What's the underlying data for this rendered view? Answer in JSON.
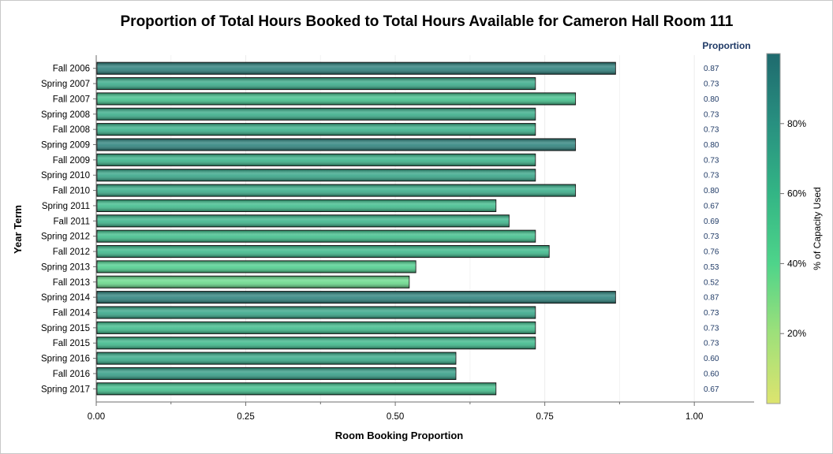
{
  "chart_data": {
    "type": "bar",
    "orientation": "horizontal",
    "title": "Proportion of Total Hours Booked to Total Hours Available for Cameron Hall Room 111",
    "xlabel": "Room Booking Proportion",
    "ylabel": "Year Term",
    "xlim": [
      0,
      1.1
    ],
    "x_ticks": [
      "0.00",
      "0.25",
      "0.50",
      "0.75",
      "1.00"
    ],
    "x_tick_values": [
      0,
      0.25,
      0.5,
      0.75,
      1.0
    ],
    "grid": true,
    "value_column_header": "Proportion",
    "categories": [
      "Fall 2006",
      "Spring 2007",
      "Fall 2007",
      "Spring 2008",
      "Fall 2008",
      "Spring 2009",
      "Fall 2009",
      "Spring 2010",
      "Fall 2010",
      "Spring 2011",
      "Fall 2011",
      "Spring 2012",
      "Fall 2012",
      "Spring 2013",
      "Fall 2013",
      "Spring 2014",
      "Fall 2014",
      "Spring 2015",
      "Fall 2015",
      "Spring 2016",
      "Fall 2016",
      "Spring 2017"
    ],
    "values": [
      0.867,
      0.733,
      0.8,
      0.733,
      0.733,
      0.8,
      0.733,
      0.733,
      0.8,
      0.667,
      0.689,
      0.733,
      0.756,
      0.533,
      0.522,
      0.867,
      0.733,
      0.733,
      0.733,
      0.6,
      0.6,
      0.667
    ],
    "value_labels": [
      "0.87",
      "0.73",
      "0.80",
      "0.73",
      "0.73",
      "0.80",
      "0.73",
      "0.73",
      "0.80",
      "0.67",
      "0.69",
      "0.73",
      "0.76",
      "0.53",
      "0.52",
      "0.87",
      "0.73",
      "0.73",
      "0.73",
      "0.60",
      "0.60",
      "0.67"
    ],
    "color_values": [
      0.92,
      0.68,
      0.55,
      0.67,
      0.65,
      0.9,
      0.63,
      0.71,
      0.66,
      0.58,
      0.62,
      0.57,
      0.6,
      0.45,
      0.35,
      0.9,
      0.7,
      0.58,
      0.6,
      0.68,
      0.75,
      0.56
    ],
    "colorbar": {
      "label": "% of Capacity Used",
      "ticks": [
        "20%",
        "40%",
        "60%",
        "80%"
      ],
      "tick_values": [
        0.2,
        0.4,
        0.6,
        0.8
      ],
      "range": [
        0.0,
        1.0
      ],
      "colors": [
        "#dde46e",
        "#9ee07a",
        "#4ed48a",
        "#33b585",
        "#289080",
        "#1f6a6e"
      ]
    }
  }
}
